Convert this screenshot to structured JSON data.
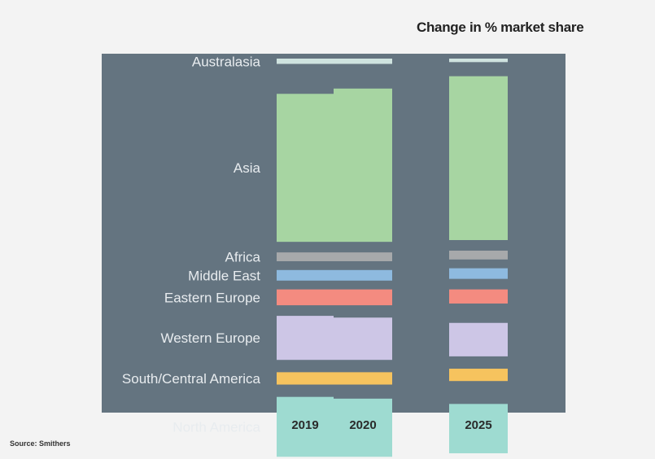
{
  "title": "Change in % market share",
  "source": "Source: Smithers",
  "chart_data": {
    "type": "bar",
    "subtype": "stacked-100-percent-marimekko",
    "years": [
      "2019",
      "2020",
      "2025"
    ],
    "background_color": "#647480",
    "regions": [
      {
        "name": "Australasia",
        "color": "#cfe3df",
        "values": [
          1.5,
          1.5,
          1.0
        ]
      },
      {
        "name": "Asia",
        "color": "#a7d5a2",
        "values": [
          42.0,
          43.5,
          46.5
        ]
      },
      {
        "name": "Africa",
        "color": "#a7a9ab",
        "values": [
          2.5,
          2.5,
          2.5
        ]
      },
      {
        "name": "Middle East",
        "color": "#8ebadf",
        "values": [
          3.0,
          3.0,
          3.0
        ]
      },
      {
        "name": "Eastern Europe",
        "color": "#f48b80",
        "values": [
          4.5,
          4.5,
          4.0
        ]
      },
      {
        "name": "Western Europe",
        "color": "#cdc6e6",
        "values": [
          12.5,
          12.0,
          9.5
        ]
      },
      {
        "name": "South/Central America",
        "color": "#f6c35e",
        "values": [
          3.5,
          3.5,
          3.5
        ]
      },
      {
        "name": "North America",
        "color": "#9edbd1",
        "values": [
          17.0,
          16.5,
          14.0
        ]
      }
    ],
    "gaps": [
      {
        "between": [
          "Australasia",
          "Asia"
        ],
        "values": [
          8.5,
          7.0,
          4.0
        ]
      },
      {
        "between": [
          "Asia",
          "Africa"
        ],
        "values": [
          3.0,
          3.0,
          3.0
        ]
      },
      {
        "between": [
          "Africa",
          "Middle East"
        ],
        "values": [
          2.5,
          2.5,
          2.5
        ]
      },
      {
        "between": [
          "Middle East",
          "Eastern Europe"
        ],
        "values": [
          2.5,
          2.5,
          3.0
        ]
      },
      {
        "between": [
          "Eastern Europe",
          "Western Europe"
        ],
        "values": [
          3.0,
          3.5,
          5.5
        ]
      },
      {
        "between": [
          "Western Europe",
          "South/Central America"
        ],
        "values": [
          3.5,
          3.5,
          3.5
        ]
      },
      {
        "between": [
          "South/Central America",
          "North America"
        ],
        "values": [
          3.5,
          4.0,
          6.5
        ]
      }
    ]
  }
}
